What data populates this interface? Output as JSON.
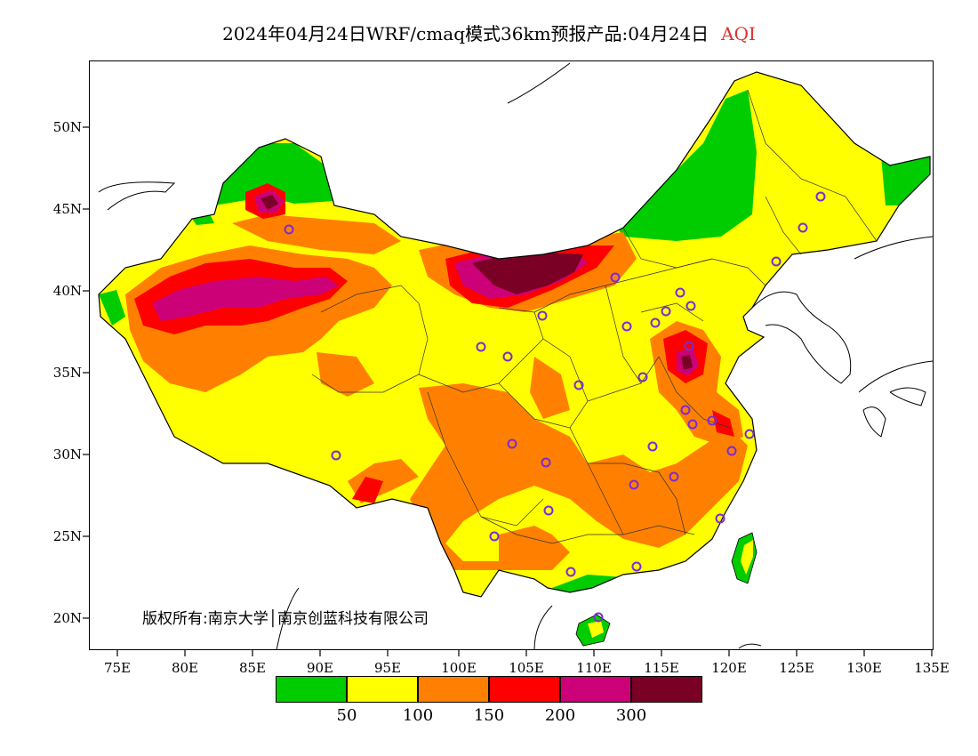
{
  "header": {
    "title": "2024年04月24日WRF/cmaq模式36km预报产品:04月24日",
    "variable": "AQI"
  },
  "map": {
    "lat_ticks": [
      "50N",
      "45N",
      "40N",
      "35N",
      "30N",
      "25N",
      "20N"
    ],
    "lon_ticks": [
      "75E",
      "80E",
      "85E",
      "90E",
      "95E",
      "100E",
      "105E",
      "110E",
      "115E",
      "120E",
      "125E",
      "130E",
      "135E"
    ],
    "copyright": "版权所有:南京大学│南京创蓝科技有限公司",
    "levels": [
      {
        "color": "#00cc00"
      },
      {
        "color": "#ffff00"
      },
      {
        "color": "#ff8000"
      },
      {
        "color": "#ff0000"
      },
      {
        "color": "#cc0077"
      },
      {
        "color": "#7a0026"
      }
    ],
    "legend_ticks": [
      "50",
      "100",
      "150",
      "200",
      "300"
    ]
  }
}
